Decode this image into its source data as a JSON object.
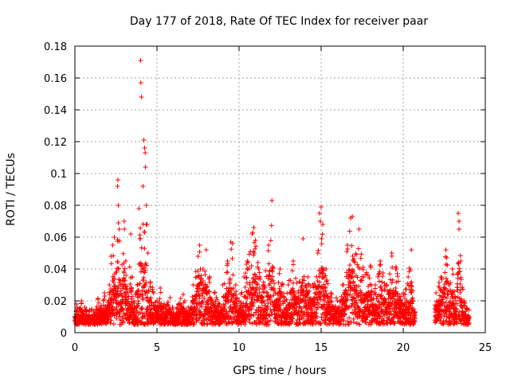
{
  "chart_data": {
    "type": "scatter",
    "title": "Day 177 of 2018, Rate Of TEC Index for receiver paar",
    "xlabel": "GPS time / hours",
    "ylabel": "ROTI / TECUs",
    "xlim": [
      0,
      25
    ],
    "ylim": [
      0,
      0.18
    ],
    "xticks": [
      0,
      5,
      10,
      15,
      20,
      25
    ],
    "yticks": [
      0,
      0.02,
      0.04,
      0.06,
      0.08,
      0.1,
      0.12,
      0.14,
      0.16,
      0.18
    ],
    "xtick_labels": [
      "0",
      "5",
      "10",
      "15",
      "20",
      "25"
    ],
    "ytick_labels": [
      "0",
      "0.02",
      "0.04",
      "0.06",
      "0.08",
      "0.1",
      "0.12",
      "0.14",
      "0.16",
      "0.18"
    ],
    "grid": true,
    "marker": "+",
    "color": "#ff0000",
    "data_gap_hours": [
      20.7,
      21.9
    ],
    "points": [
      [
        0.0,
        0.01
      ],
      [
        0.1,
        0.018
      ],
      [
        0.2,
        0.008
      ],
      [
        0.3,
        0.015
      ],
      [
        0.4,
        0.02
      ],
      [
        0.5,
        0.012
      ],
      [
        0.6,
        0.016
      ],
      [
        0.8,
        0.009
      ],
      [
        1.0,
        0.014
      ],
      [
        1.2,
        0.011
      ],
      [
        1.4,
        0.021
      ],
      [
        1.6,
        0.017
      ],
      [
        1.8,
        0.025
      ],
      [
        2.0,
        0.019
      ],
      [
        2.1,
        0.03
      ],
      [
        2.2,
        0.048
      ],
      [
        2.3,
        0.055
      ],
      [
        2.4,
        0.06
      ],
      [
        2.5,
        0.038
      ],
      [
        2.6,
        0.092
      ],
      [
        2.62,
        0.096
      ],
      [
        2.65,
        0.08
      ],
      [
        2.7,
        0.065
      ],
      [
        2.8,
        0.03
      ],
      [
        3.0,
        0.07
      ],
      [
        3.1,
        0.045
      ],
      [
        3.2,
        0.025
      ],
      [
        3.4,
        0.062
      ],
      [
        3.5,
        0.035
      ],
      [
        3.6,
        0.02
      ],
      [
        3.8,
        0.03
      ],
      [
        3.9,
        0.078
      ],
      [
        4.0,
        0.171
      ],
      [
        4.02,
        0.157
      ],
      [
        4.05,
        0.148
      ],
      [
        4.1,
        0.04
      ],
      [
        4.15,
        0.092
      ],
      [
        4.2,
        0.121
      ],
      [
        4.25,
        0.116
      ],
      [
        4.28,
        0.113
      ],
      [
        4.3,
        0.104
      ],
      [
        4.35,
        0.08
      ],
      [
        4.4,
        0.068
      ],
      [
        4.45,
        0.05
      ],
      [
        4.6,
        0.032
      ],
      [
        4.8,
        0.025
      ],
      [
        5.0,
        0.02
      ],
      [
        5.2,
        0.028
      ],
      [
        5.5,
        0.015
      ],
      [
        5.8,
        0.022
      ],
      [
        6.0,
        0.012
      ],
      [
        6.3,
        0.018
      ],
      [
        6.6,
        0.024
      ],
      [
        6.9,
        0.016
      ],
      [
        7.2,
        0.03
      ],
      [
        7.5,
        0.048
      ],
      [
        7.6,
        0.055
      ],
      [
        7.8,
        0.04
      ],
      [
        8.0,
        0.052
      ],
      [
        8.2,
        0.035
      ],
      [
        8.5,
        0.025
      ],
      [
        8.8,
        0.018
      ],
      [
        9.0,
        0.03
      ],
      [
        9.3,
        0.045
      ],
      [
        9.5,
        0.057
      ],
      [
        9.6,
        0.056
      ],
      [
        9.8,
        0.03
      ],
      [
        10.0,
        0.02
      ],
      [
        10.3,
        0.035
      ],
      [
        10.5,
        0.045
      ],
      [
        10.8,
        0.062
      ],
      [
        10.9,
        0.066
      ],
      [
        11.0,
        0.058
      ],
      [
        11.2,
        0.04
      ],
      [
        11.5,
        0.03
      ],
      [
        11.8,
        0.055
      ],
      [
        12.0,
        0.083
      ],
      [
        12.2,
        0.025
      ],
      [
        12.5,
        0.04
      ],
      [
        12.8,
        0.02
      ],
      [
        13.0,
        0.03
      ],
      [
        13.3,
        0.045
      ],
      [
        13.6,
        0.025
      ],
      [
        13.9,
        0.059
      ],
      [
        14.2,
        0.035
      ],
      [
        14.5,
        0.03
      ],
      [
        14.8,
        0.05
      ],
      [
        14.9,
        0.075
      ],
      [
        15.0,
        0.079
      ],
      [
        15.1,
        0.068
      ],
      [
        15.3,
        0.04
      ],
      [
        15.6,
        0.025
      ],
      [
        16.0,
        0.02
      ],
      [
        16.3,
        0.03
      ],
      [
        16.6,
        0.055
      ],
      [
        16.8,
        0.072
      ],
      [
        16.9,
        0.073
      ],
      [
        17.0,
        0.045
      ],
      [
        17.3,
        0.065
      ],
      [
        17.6,
        0.035
      ],
      [
        18.0,
        0.042
      ],
      [
        18.3,
        0.03
      ],
      [
        18.6,
        0.045
      ],
      [
        19.0,
        0.03
      ],
      [
        19.3,
        0.05
      ],
      [
        19.6,
        0.04
      ],
      [
        20.0,
        0.025
      ],
      [
        20.3,
        0.035
      ],
      [
        20.5,
        0.052
      ],
      [
        20.6,
        0.02
      ],
      [
        22.0,
        0.025
      ],
      [
        22.3,
        0.035
      ],
      [
        22.6,
        0.052
      ],
      [
        22.8,
        0.03
      ],
      [
        23.0,
        0.04
      ],
      [
        23.2,
        0.02
      ],
      [
        23.35,
        0.075
      ],
      [
        23.4,
        0.07
      ],
      [
        23.5,
        0.045
      ],
      [
        23.7,
        0.02
      ],
      [
        23.9,
        0.015
      ],
      [
        24.0,
        0.01
      ]
    ]
  }
}
